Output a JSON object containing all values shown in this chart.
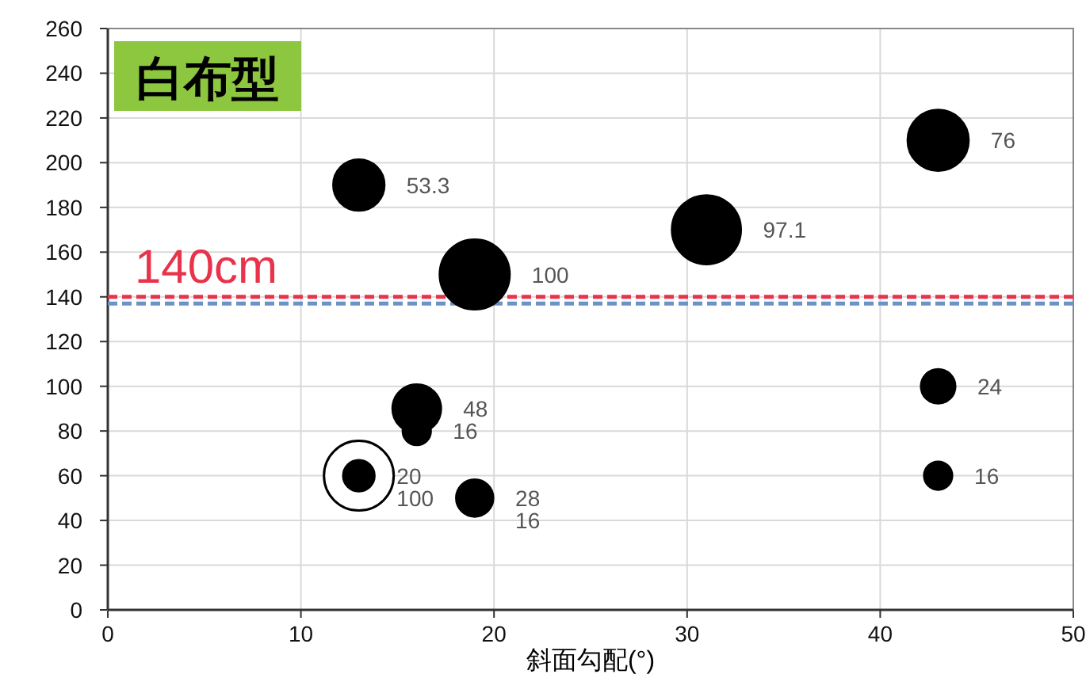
{
  "chart_data": {
    "type": "bubble",
    "title": "白布型",
    "xlabel": "斜面勾配(°)",
    "xlim": [
      0,
      50
    ],
    "xticks": [
      0,
      10,
      20,
      30,
      40,
      50
    ],
    "ylim": [
      0,
      260
    ],
    "yticks": [
      0,
      20,
      40,
      60,
      80,
      100,
      120,
      140,
      160,
      180,
      200,
      220,
      240,
      260
    ],
    "grid": true,
    "series": [
      {
        "color": "#000000",
        "x": [
          13,
          19,
          31,
          43,
          43,
          43,
          16,
          16,
          13,
          19
        ],
        "values": [
          190,
          150,
          170,
          210,
          100,
          60,
          90,
          80,
          60,
          50
        ],
        "sizes": [
          0.533,
          1,
          0.971,
          0.76,
          0.24,
          0.16,
          0.48,
          0.16,
          0.2,
          0.28
        ]
      },
      {
        "color": "#ffffff",
        "x": [
          13
        ],
        "values": [
          60
        ],
        "sizes": [
          1
        ]
      }
    ],
    "annotations": [
      {
        "text": "53.3",
        "x": 13,
        "y": 190
      },
      {
        "text": "100",
        "x": 19,
        "y": 150
      },
      {
        "text": "97.1",
        "x": 31,
        "y": 170
      },
      {
        "text": "76",
        "x": 43,
        "y": 210
      },
      {
        "text": "24",
        "x": 43,
        "y": 100
      },
      {
        "text": "16",
        "x": 43,
        "y": 60
      },
      {
        "text": "48",
        "x": 16,
        "y": 90
      },
      {
        "text": "16",
        "x": 16,
        "y": 80
      },
      {
        "text": "20",
        "x": 13,
        "y": 60
      },
      {
        "text": "100",
        "x": 13,
        "y": 60
      },
      {
        "text": "28",
        "x": 19,
        "y": 50
      },
      {
        "text": "16",
        "x": 19,
        "y": 50
      }
    ],
    "ref_lines": [
      {
        "axis": "y",
        "value": 140,
        "label": "140cm",
        "color": "#e8334a",
        "line_style": "dashed"
      },
      {
        "axis": "y",
        "value": 137,
        "color": "#6b93c8",
        "line_style": "dashed"
      }
    ]
  }
}
